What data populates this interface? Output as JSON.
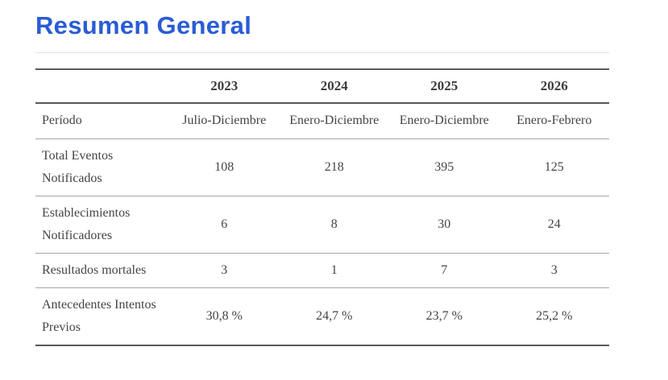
{
  "page": {
    "title": "Resumen General",
    "accent_color": "#2a5cd4"
  },
  "table": {
    "columns": [
      "2023",
      "2024",
      "2025",
      "2026"
    ],
    "rows": [
      {
        "label": "Período",
        "values": [
          "Julio-Diciembre",
          "Enero-Diciembre",
          "Enero-Diciembre",
          "Enero-Febrero"
        ]
      },
      {
        "label": "Total Eventos Notificados",
        "values": [
          "108",
          "218",
          "395",
          "125"
        ]
      },
      {
        "label": "Establecimientos Notificadores",
        "values": [
          "6",
          "8",
          "30",
          "24"
        ]
      },
      {
        "label": "Resultados mortales",
        "values": [
          "3",
          "1",
          "7",
          "3"
        ]
      },
      {
        "label": "Antecedentes Intentos Previos",
        "values": [
          "30,8 %",
          "24,7 %",
          "23,7 %",
          "25,2 %"
        ]
      }
    ]
  }
}
